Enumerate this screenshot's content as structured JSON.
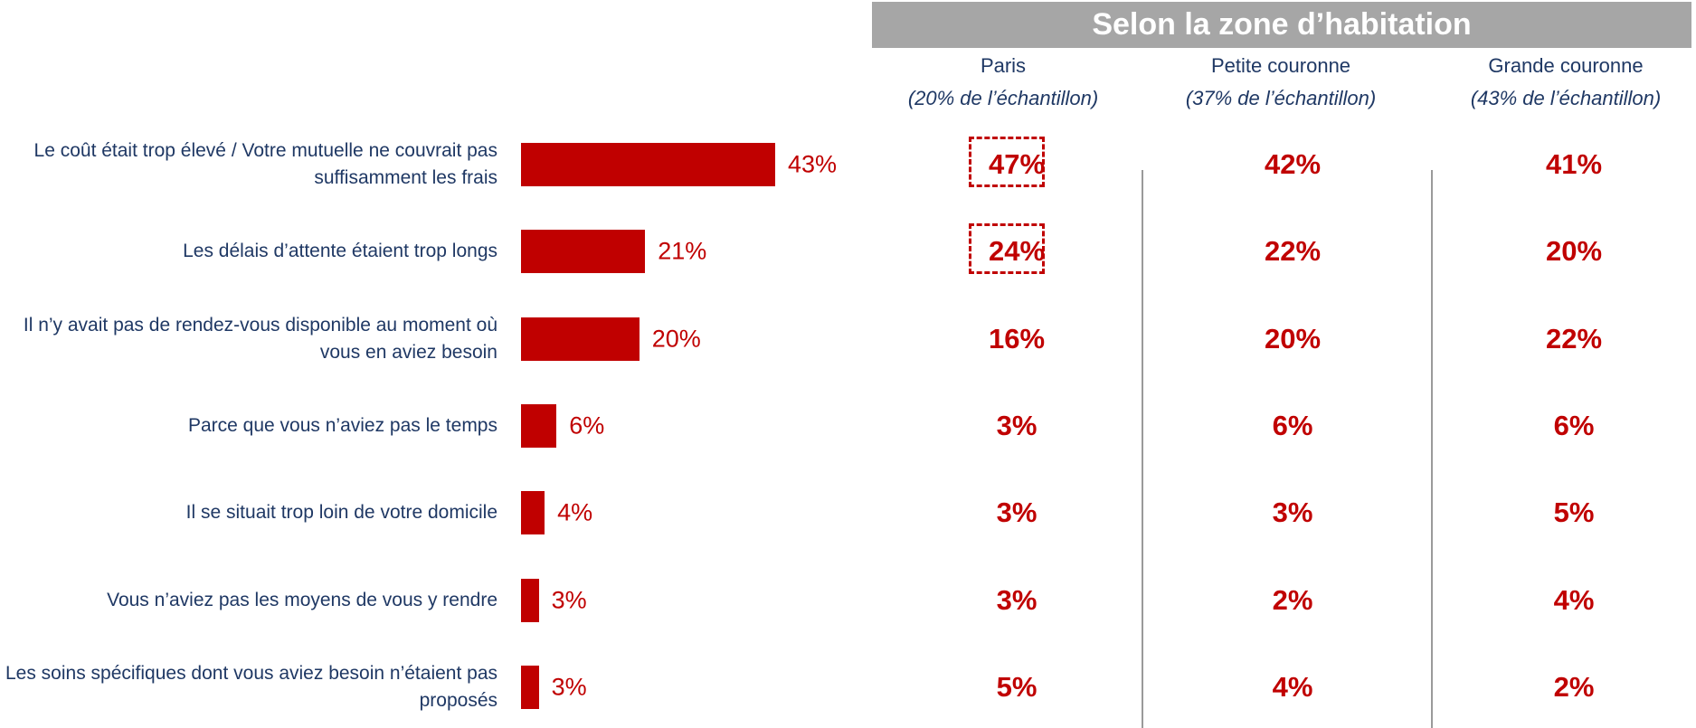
{
  "chart_data": {
    "type": "bar",
    "color": "#c00000",
    "categories": [
      "Le coût était trop élevé / Votre mutuelle ne couvrait pas suffisamment les frais",
      "Les délais d’attente étaient trop longs",
      "Il n’y avait pas de rendez-vous disponible au moment où vous en aviez besoin",
      "Parce que vous n’aviez pas le temps",
      "Il se situait trop loin de votre domicile",
      "Vous n’aviez pas les moyens de vous y rendre",
      "Les soins spécifiques dont vous aviez besoin n’étaient pas proposés"
    ],
    "values": [
      43,
      21,
      20,
      6,
      4,
      3,
      3
    ],
    "value_labels": [
      "43%",
      "21%",
      "20%",
      "6%",
      "4%",
      "3%",
      "3%"
    ],
    "table": {
      "title": "Selon la zone d’habitation",
      "columns": [
        {
          "name": "Paris",
          "note": "(20% de l’échantillon)",
          "values": [
            47,
            24,
            16,
            3,
            3,
            3,
            5
          ],
          "value_labels": [
            "47%",
            "24%",
            "16%",
            "3%",
            "3%",
            "3%",
            "5%"
          ],
          "highlighted": [
            0,
            1
          ]
        },
        {
          "name": "Petite couronne",
          "note": "(37% de l’échantillon)",
          "values": [
            42,
            22,
            20,
            6,
            3,
            2,
            4
          ],
          "value_labels": [
            "42%",
            "22%",
            "20%",
            "6%",
            "3%",
            "2%",
            "4%"
          ]
        },
        {
          "name": "Grande couronne",
          "note": "(43% de l’échantillon)",
          "values": [
            41,
            20,
            22,
            6,
            5,
            4,
            2
          ],
          "value_labels": [
            "41%",
            "20%",
            "22%",
            "6%",
            "5%",
            "4%",
            "2%"
          ]
        }
      ]
    }
  }
}
